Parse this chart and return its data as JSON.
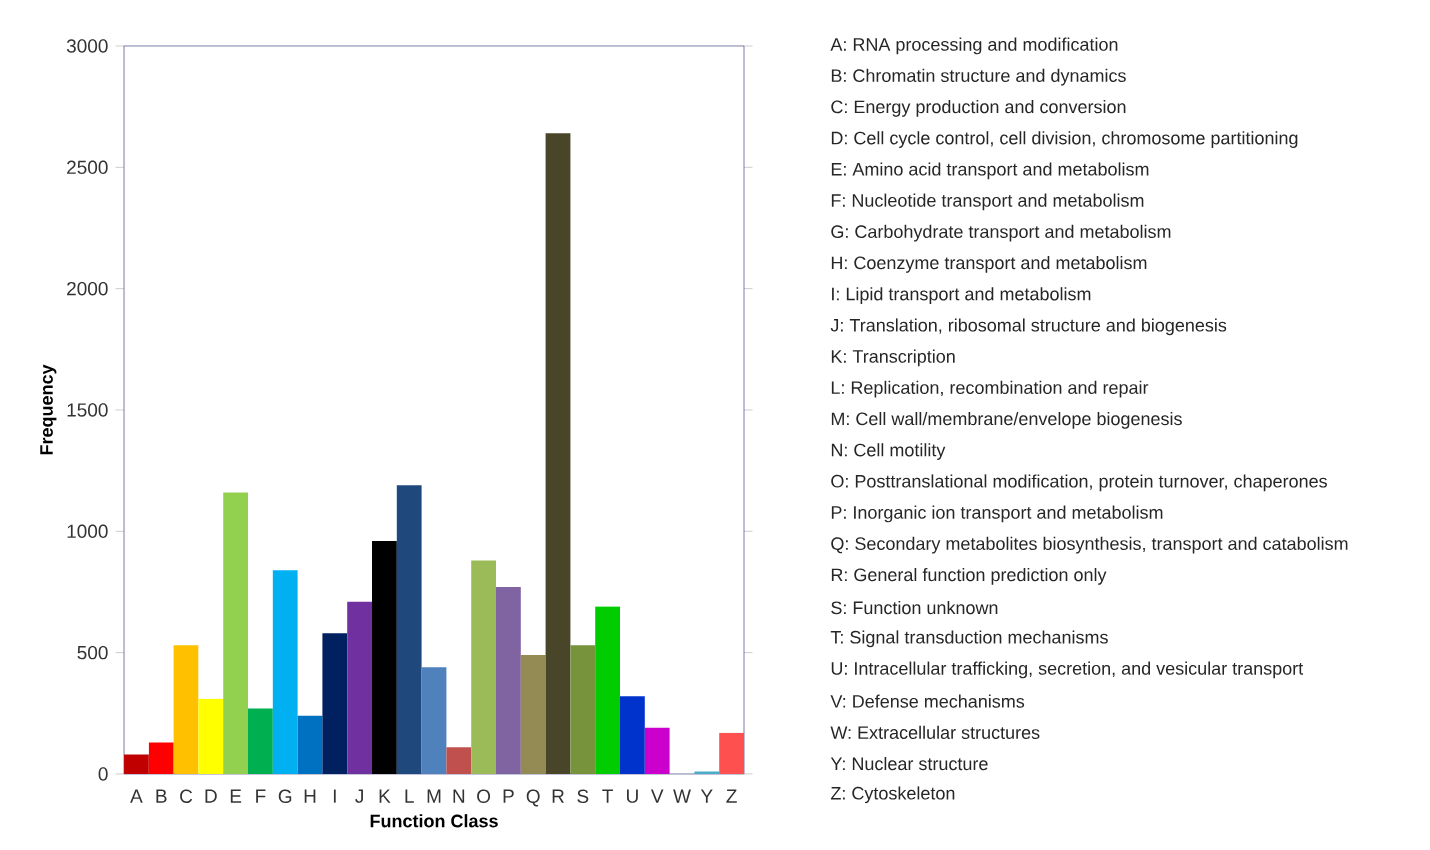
{
  "chart_data": {
    "type": "bar",
    "xlabel": "Function Class",
    "ylabel": "Frequency",
    "categories": [
      "A",
      "B",
      "C",
      "D",
      "E",
      "F",
      "G",
      "H",
      "I",
      "J",
      "K",
      "L",
      "M",
      "N",
      "O",
      "P",
      "Q",
      "R",
      "S",
      "T",
      "U",
      "V",
      "W",
      "Y",
      "Z"
    ],
    "values": [
      80,
      130,
      530,
      310,
      1160,
      270,
      840,
      240,
      580,
      710,
      960,
      1190,
      440,
      110,
      880,
      770,
      490,
      2640,
      530,
      690,
      320,
      190,
      0,
      10,
      170
    ],
    "colors": [
      "#c00000",
      "#ff0000",
      "#ffc000",
      "#ffff00",
      "#92d050",
      "#00b050",
      "#00b0f0",
      "#0070c0",
      "#002060",
      "#7030a0",
      "#000000",
      "#1f497d",
      "#4f81bd",
      "#c0504d",
      "#9bbb59",
      "#8064a2",
      "#948a54",
      "#494529",
      "#77933c",
      "#00cc00",
      "#0033cc",
      "#cc00cc",
      "#999999",
      "#4bacc6",
      "#ff5050"
    ],
    "ylim": [
      0,
      3000
    ],
    "yticks": [
      0,
      500,
      1000,
      1500,
      2000,
      2500,
      3000
    ],
    "grid": false,
    "annotations": [
      "A: RNA processing and modification",
      "B: Chromatin structure and dynamics",
      "C: Energy production and conversion",
      "D: Cell cycle control, cell division, chromosome partitioning",
      "E: Amino acid transport and metabolism",
      "F: Nucleotide transport and metabolism",
      "G: Carbohydrate transport and metabolism",
      "H: Coenzyme transport and metabolism",
      "I: Lipid transport and metabolism",
      "J: Translation, ribosomal structure and biogenesis",
      "K: Transcription",
      "L: Replication, recombination and repair",
      "M: Cell wall/membrane/envelope biogenesis",
      "N: Cell motility",
      "O: Posttranslational modification, protein turnover, chaperones",
      "P: Inorganic ion transport and metabolism",
      "Q: Secondary metabolites biosynthesis, transport and catabolism",
      "R: General function prediction only",
      "S: Function unknown",
      "T: Signal transduction mechanisms",
      "U: Intracellular trafficking, secretion, and vesicular transport",
      "V: Defense mechanisms",
      "W: Extracellular structures",
      "Y: Nuclear structure",
      "Z: Cytoskeleton"
    ]
  }
}
